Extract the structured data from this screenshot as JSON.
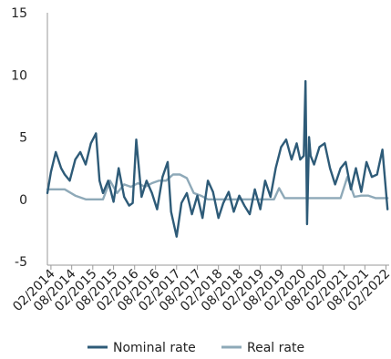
{
  "chart_data": {
    "type": "line",
    "title": "",
    "xlabel": "",
    "ylabel": "",
    "ylim": [
      -5,
      15
    ],
    "yticks": [
      -5,
      0,
      5,
      10,
      15
    ],
    "xlim": [
      "2014-01-01",
      "2022-03-01"
    ],
    "xtick_labels": [
      "02/2014",
      "08/2014",
      "02/2015",
      "08/2015",
      "02/2016",
      "08/2016",
      "02/2017",
      "08/2017",
      "02/2018",
      "08/2018",
      "02/2019",
      "08/2019",
      "02/2020",
      "08/2020",
      "02/2021",
      "08/2021",
      "02/2022"
    ],
    "grid": false,
    "legend": "bottom",
    "series": [
      {
        "name": "Nominal rate",
        "color": "#2e5b78",
        "x": [
          "2014-01-01",
          "2014-02-01",
          "2014-03-15",
          "2014-05-01",
          "2014-06-01",
          "2014-07-15",
          "2014-09-01",
          "2014-10-15",
          "2014-12-01",
          "2015-01-15",
          "2015-03-01",
          "2015-04-01",
          "2015-05-01",
          "2015-06-15",
          "2015-08-01",
          "2015-09-15",
          "2015-11-01",
          "2015-12-15",
          "2016-01-15",
          "2016-02-15",
          "2016-04-01",
          "2016-05-15",
          "2016-07-01",
          "2016-08-15",
          "2016-10-01",
          "2016-11-15",
          "2016-12-15",
          "2017-02-01",
          "2017-03-15",
          "2017-05-01",
          "2017-06-15",
          "2017-08-01",
          "2017-09-15",
          "2017-11-01",
          "2017-12-15",
          "2018-02-01",
          "2018-03-15",
          "2018-05-01",
          "2018-06-15",
          "2018-08-01",
          "2018-09-15",
          "2018-11-01",
          "2018-12-15",
          "2019-02-01",
          "2019-03-15",
          "2019-05-01",
          "2019-06-15",
          "2019-08-01",
          "2019-09-15",
          "2019-11-01",
          "2019-12-15",
          "2020-01-15",
          "2020-02-15",
          "2020-03-01",
          "2020-03-15",
          "2020-04-01",
          "2020-04-15",
          "2020-05-15",
          "2020-07-01",
          "2020-08-15",
          "2020-10-01",
          "2020-11-15",
          "2021-01-01",
          "2021-02-15",
          "2021-04-01",
          "2021-05-15",
          "2021-07-01",
          "2021-08-15",
          "2021-10-01",
          "2021-11-15",
          "2022-01-01",
          "2022-02-15"
        ],
        "y": [
          0.5,
          2.2,
          3.8,
          2.5,
          2.0,
          1.5,
          3.2,
          3.8,
          2.8,
          4.5,
          5.3,
          1.5,
          0.5,
          1.5,
          -0.2,
          2.5,
          0.2,
          -0.5,
          -0.3,
          4.8,
          0.2,
          1.5,
          0.5,
          -0.8,
          1.8,
          3.0,
          -1.0,
          -3.0,
          -0.3,
          0.5,
          -1.2,
          0.3,
          -1.5,
          1.5,
          0.6,
          -1.5,
          -0.3,
          0.6,
          -1.0,
          0.3,
          -0.5,
          -1.2,
          0.8,
          -0.8,
          1.5,
          0.2,
          2.5,
          4.2,
          4.8,
          3.2,
          4.5,
          3.2,
          3.5,
          9.5,
          -2.0,
          5.0,
          3.5,
          2.8,
          4.2,
          4.5,
          2.5,
          1.2,
          2.5,
          3.0,
          0.8,
          2.5,
          0.6,
          3.0,
          1.8,
          2.0,
          4.0,
          -0.8
        ]
      },
      {
        "name": "Real rate",
        "color": "#8ea9b8",
        "x": [
          "2014-01-01",
          "2014-06-01",
          "2014-09-01",
          "2014-12-01",
          "2015-02-01",
          "2015-05-01",
          "2015-07-01",
          "2015-09-01",
          "2015-11-01",
          "2016-01-01",
          "2016-03-01",
          "2016-05-01",
          "2016-07-01",
          "2016-09-01",
          "2016-11-01",
          "2017-01-01",
          "2017-03-01",
          "2017-05-01",
          "2017-07-01",
          "2017-09-01",
          "2017-11-01",
          "2018-01-01",
          "2018-04-01",
          "2018-07-01",
          "2018-10-01",
          "2019-01-01",
          "2019-04-01",
          "2019-06-01",
          "2019-07-15",
          "2019-09-01",
          "2019-12-01",
          "2020-03-01",
          "2020-06-01",
          "2020-09-01",
          "2020-11-01",
          "2021-01-01",
          "2021-03-01",
          "2021-05-01",
          "2021-07-01",
          "2021-09-01",
          "2021-11-01",
          "2022-01-01",
          "2022-02-15"
        ],
        "y": [
          0.8,
          0.8,
          0.3,
          0.0,
          0.0,
          0.0,
          1.5,
          0.5,
          1.2,
          1.0,
          1.3,
          1.0,
          1.3,
          1.5,
          1.5,
          2.0,
          2.0,
          1.7,
          0.5,
          0.3,
          0.0,
          0.0,
          0.0,
          0.0,
          0.0,
          0.0,
          0.0,
          0.0,
          0.9,
          0.1,
          0.1,
          0.1,
          0.1,
          0.1,
          0.1,
          0.1,
          1.8,
          0.2,
          0.3,
          0.3,
          0.1,
          0.1,
          0.1
        ]
      }
    ]
  }
}
